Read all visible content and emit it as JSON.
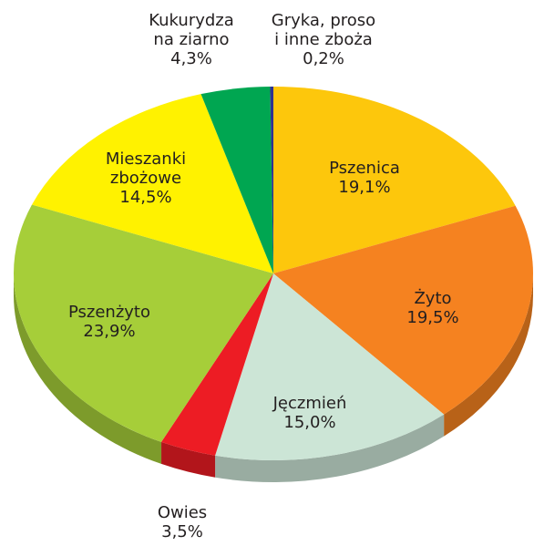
{
  "chart_data": {
    "type": "pie",
    "categories": [
      "Pszenica",
      "Żyto",
      "Jęczmień",
      "Owies",
      "Pszenżyto",
      "Mieszanki\nzbożowe",
      "Kukurydza\nna ziarno",
      "Gryka, proso\ni inne zboża"
    ],
    "values": [
      19.1,
      19.5,
      15.0,
      3.5,
      23.9,
      14.5,
      4.3,
      0.2
    ],
    "value_labels": [
      "19,1%",
      "19,5%",
      "15,0%",
      "3,5%",
      "23,9%",
      "14,5%",
      "4,3%",
      "0,2%"
    ],
    "colors": [
      "#fdc70c",
      "#f58220",
      "#cce5d6",
      "#ed1c24",
      "#a6ce39",
      "#fff200",
      "#00a651",
      "#2e3192"
    ]
  }
}
